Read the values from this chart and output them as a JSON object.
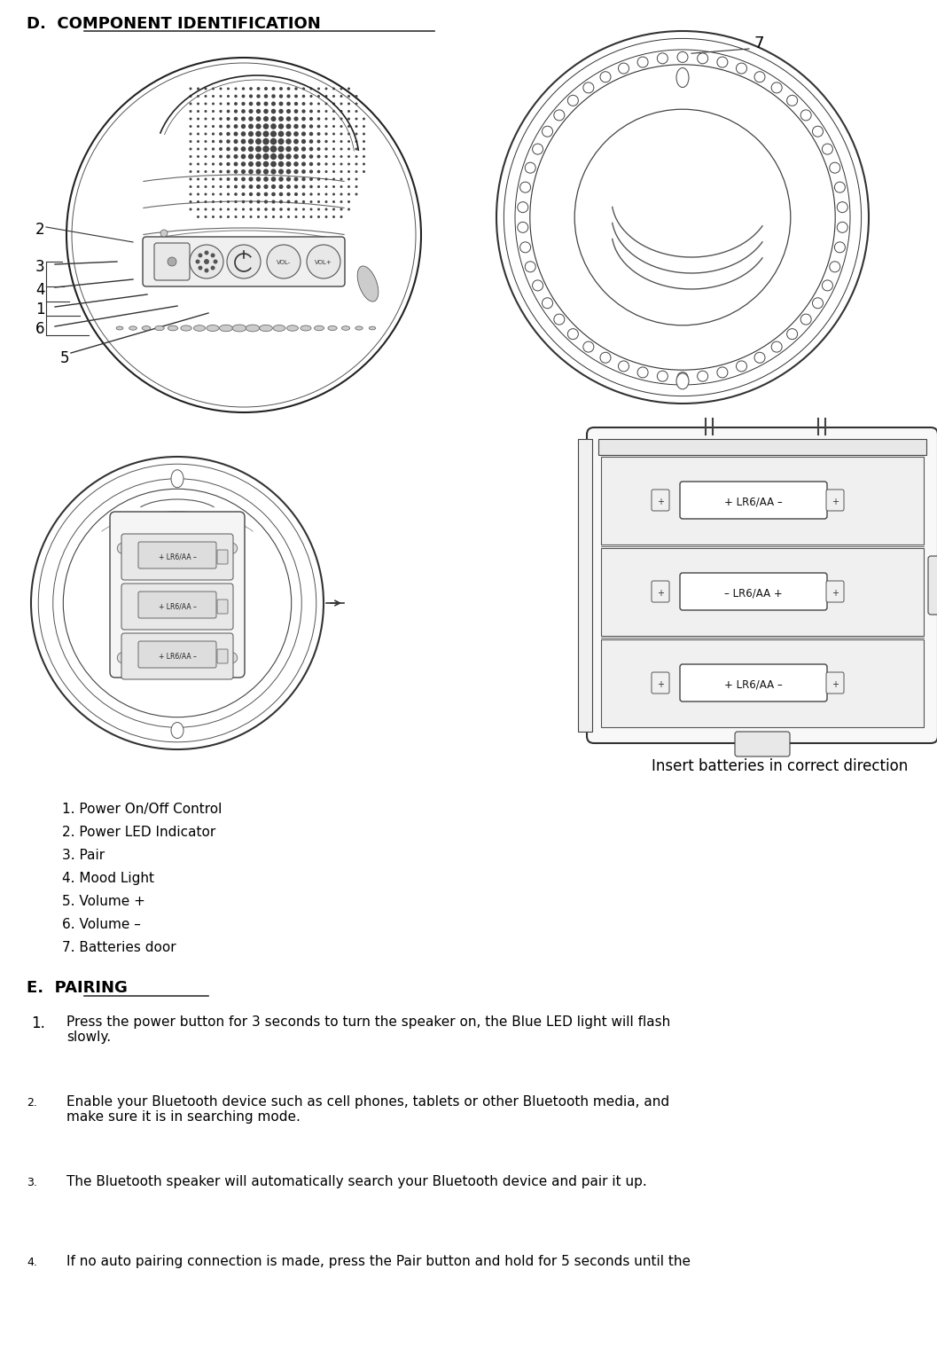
{
  "bg_color": "#ffffff",
  "text_color": "#000000",
  "section_d_title": "D.  COMPONENT IDENTIFICATION",
  "section_e_title": "E.  PAIRING",
  "component_list": [
    "1. Power On/Off Control",
    "2. Power LED Indicator",
    "3. Pair",
    "4. Mood Light",
    "5. Volume +",
    "6. Volume –",
    "7. Batteries door"
  ],
  "battery_caption": "Insert batteries in correct direction",
  "pairing_texts": [
    [
      "1.",
      "Press the power button for 3 seconds to turn the speaker on, the Blue LED light will flash\nslowly."
    ],
    [
      "2.",
      "Enable your Bluetooth device such as cell phones, tablets or other Bluetooth media, and\nmake sure it is in searching mode."
    ],
    [
      "3.",
      "The Bluetooth speaker will automatically search your Bluetooth device and pair it up."
    ],
    [
      "4.",
      "If no auto pairing connection is made, press the Pair button and hold for 5 seconds until the"
    ]
  ]
}
